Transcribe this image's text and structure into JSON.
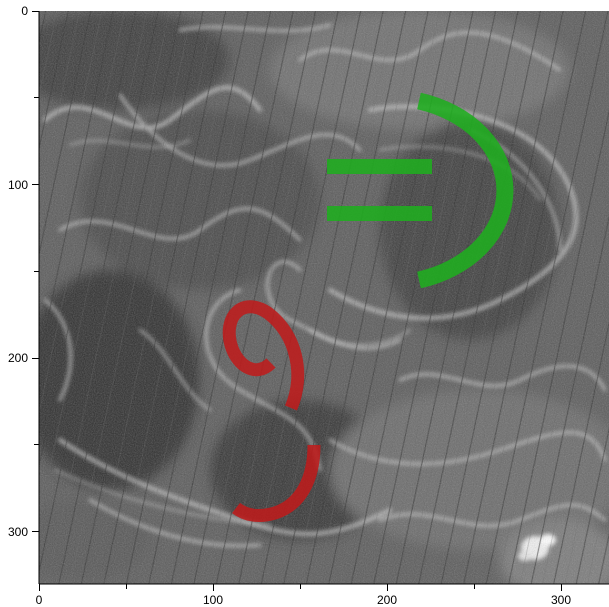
{
  "figure": {
    "x_axis": {
      "ticks": [
        0,
        100,
        200,
        300
      ],
      "minor_ticks": [
        50,
        150,
        250
      ],
      "range": [
        0,
        327
      ]
    },
    "y_axis": {
      "ticks": [
        0,
        100,
        200,
        300
      ],
      "minor_ticks": [
        50,
        150,
        250
      ],
      "range": [
        0,
        330
      ],
      "inverted": true
    },
    "labels": {
      "x0": "0",
      "x100": "100",
      "x200": "200",
      "x300": "300",
      "y0": "0",
      "y100": "100",
      "y200": "200",
      "y300": "300"
    },
    "overlay_colors": {
      "green": "#1fae1f",
      "red": "#c11a1a"
    },
    "background": "grayscale satellite imagery with swirling ocean eddy patterns"
  }
}
